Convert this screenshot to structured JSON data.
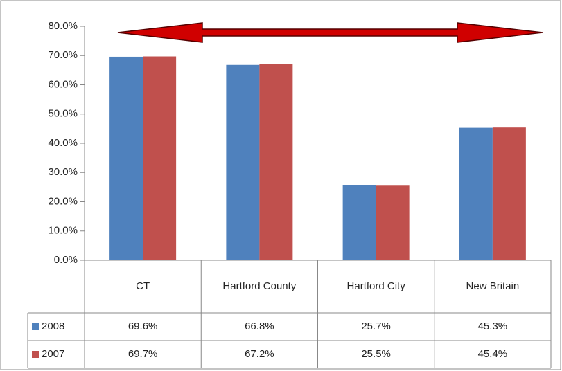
{
  "chart_data": {
    "type": "bar",
    "categories": [
      "CT",
      "Hartford County",
      "Hartford City",
      "New Britain"
    ],
    "series": [
      {
        "name": "2008",
        "color": "#4f81bd",
        "values": [
          69.6,
          66.8,
          25.7,
          45.3
        ],
        "value_labels": [
          "69.6%",
          "66.8%",
          "25.7%",
          "45.3%"
        ]
      },
      {
        "name": "2007",
        "color": "#c0504d",
        "values": [
          69.7,
          67.2,
          25.5,
          45.4
        ],
        "value_labels": [
          "69.7%",
          "67.2%",
          "25.5%",
          "45.4%"
        ]
      }
    ],
    "ylim": [
      0,
      80
    ],
    "yticks": [
      {
        "value": 0,
        "label": "0.0%"
      },
      {
        "value": 10,
        "label": "10.0%"
      },
      {
        "value": 20,
        "label": "20.0%"
      },
      {
        "value": 30,
        "label": "30.0%"
      },
      {
        "value": 40,
        "label": "40.0%"
      },
      {
        "value": 50,
        "label": "50.0%"
      },
      {
        "value": 60,
        "label": "60.0%"
      },
      {
        "value": 70,
        "label": "70.0%"
      },
      {
        "value": 80,
        "label": "80.0%"
      }
    ],
    "grid": false
  }
}
